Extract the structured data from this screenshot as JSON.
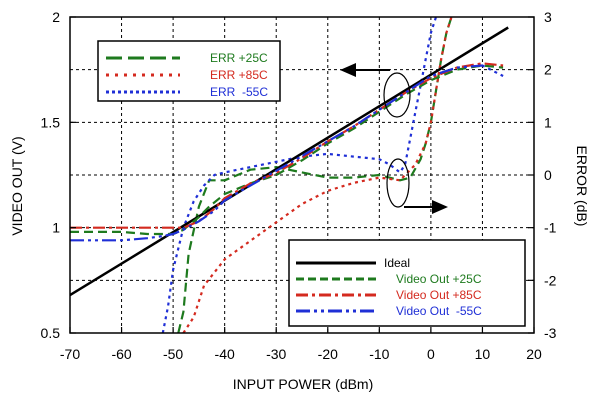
{
  "chart_data": {
    "type": "line",
    "xlabel": "INPUT POWER (dBm)",
    "ylabel_left": "VIDEO OUT (V)",
    "ylabel_right": "ERROR (dB)",
    "xlim": [
      -70,
      20
    ],
    "ylim_left": [
      0.5,
      2
    ],
    "ylim_right": [
      -3,
      3
    ],
    "x_ticks": [
      "-70",
      "-60",
      "-50",
      "-40",
      "-30",
      "-20",
      "-10",
      "0",
      "10",
      "20"
    ],
    "y_left_ticks": [
      "0.5",
      "1",
      "1.5",
      "2"
    ],
    "y_right_ticks": [
      "-3",
      "-2",
      "-1",
      "0",
      "1",
      "2",
      "3"
    ],
    "grid": true,
    "grid_style": "dashed",
    "legend_error": {
      "placement": "top-left",
      "entries": [
        "ERR +25C",
        "ERR +85C",
        "ERR  -55C"
      ]
    },
    "legend_video": {
      "placement": "bottom-right",
      "entries": [
        "Ideal",
        "Video Out +25C",
        "Video Out +85C",
        "Video Out  -55C"
      ]
    },
    "colors": {
      "ideal": "#000000",
      "t25": "#1e7a1e",
      "t85": "#d42a1f",
      "tm55": "#1f2fd6"
    },
    "video_series": [
      {
        "name": "Ideal",
        "axis": "left",
        "style": "solid",
        "color": "#000000",
        "x": [
          -70,
          15
        ],
        "y": [
          0.68,
          1.95
        ]
      },
      {
        "name": "Video Out +25C",
        "axis": "left",
        "style": "dash",
        "color": "#1e7a1e",
        "x": [
          -70,
          -60,
          -55,
          -50,
          -48,
          -45,
          -43,
          -40,
          -35,
          -30,
          -25,
          -20,
          -15,
          -10,
          -5,
          0,
          5,
          10,
          14
        ],
        "y": [
          0.98,
          0.98,
          0.97,
          0.97,
          0.99,
          1.05,
          1.1,
          1.16,
          1.21,
          1.25,
          1.32,
          1.4,
          1.47,
          1.55,
          1.63,
          1.7,
          1.75,
          1.77,
          1.76
        ]
      },
      {
        "name": "Video Out +85C",
        "axis": "left",
        "style": "dashdot",
        "color": "#d42a1f",
        "x": [
          -70,
          -60,
          -55,
          -50,
          -48,
          -45,
          -42,
          -40,
          -35,
          -30,
          -25,
          -20,
          -15,
          -10,
          -5,
          0,
          5,
          10,
          14
        ],
        "y": [
          1.0,
          1.0,
          1.0,
          1.0,
          1.0,
          1.03,
          1.09,
          1.14,
          1.21,
          1.26,
          1.33,
          1.41,
          1.48,
          1.56,
          1.64,
          1.71,
          1.76,
          1.78,
          1.77
        ]
      },
      {
        "name": "Video Out  -55C",
        "axis": "left",
        "style": "dashdotdot",
        "color": "#1f2fd6",
        "x": [
          -70,
          -60,
          -55,
          -52,
          -50,
          -48,
          -45,
          -42,
          -40,
          -35,
          -30,
          -25,
          -20,
          -15,
          -10,
          -5,
          0,
          5,
          10,
          14
        ],
        "y": [
          0.94,
          0.94,
          0.95,
          0.96,
          0.97,
          0.99,
          1.03,
          1.08,
          1.13,
          1.2,
          1.27,
          1.34,
          1.41,
          1.48,
          1.56,
          1.64,
          1.72,
          1.76,
          1.77,
          1.72
        ]
      }
    ],
    "error_series": [
      {
        "name": "ERR +25C",
        "axis": "right",
        "style": "dash",
        "color": "#1e7a1e",
        "x": [
          -49,
          -48,
          -47,
          -45,
          -43,
          -40,
          -35,
          -30,
          -25,
          -20,
          -15,
          -10,
          -6,
          -4,
          -2,
          -1,
          0,
          1,
          2,
          3,
          4
        ],
        "y": [
          -3,
          -2.6,
          -1.5,
          -0.6,
          -0.1,
          -0.1,
          0.1,
          0.15,
          0.05,
          -0.05,
          -0.05,
          0.0,
          -0.1,
          -0.05,
          0.3,
          0.6,
          1.0,
          1.6,
          2.2,
          2.7,
          3
        ]
      },
      {
        "name": "ERR +85C",
        "axis": "right",
        "style": "dot",
        "color": "#d42a1f",
        "x": [
          -48,
          -46,
          -44,
          -40,
          -35,
          -30,
          -25,
          -20,
          -15,
          -10,
          -6,
          -3,
          -1,
          0,
          1,
          2,
          3,
          4
        ],
        "y": [
          -3,
          -2.7,
          -2.1,
          -1.6,
          -1.25,
          -0.9,
          -0.55,
          -0.3,
          -0.15,
          -0.05,
          -0.1,
          0.2,
          0.6,
          1.0,
          1.6,
          2.2,
          2.7,
          3
        ]
      },
      {
        "name": "ERR  -55C",
        "axis": "right",
        "style": "dot",
        "color": "#1f2fd6",
        "x": [
          -52,
          -51,
          -50,
          -48,
          -46,
          -44,
          -42,
          -40,
          -35,
          -30,
          -25,
          -20,
          -15,
          -10,
          -8,
          -6,
          -5,
          -4,
          -3,
          -2,
          -1,
          0,
          1
        ],
        "y": [
          -3,
          -2.5,
          -1.8,
          -1.0,
          -0.5,
          -0.2,
          0.0,
          0.05,
          0.15,
          0.25,
          0.35,
          0.4,
          0.35,
          0.3,
          0.2,
          0.05,
          0.2,
          0.7,
          1.2,
          1.7,
          2.2,
          2.7,
          3
        ]
      }
    ]
  }
}
